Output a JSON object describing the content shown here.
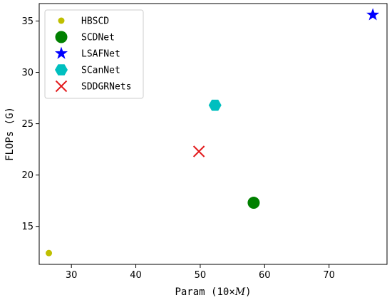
{
  "chart_data": {
    "type": "scatter",
    "xlabel": "Param (10×M)",
    "xlabel_parts": {
      "prefix": "Param (10",
      "times": "×",
      "unit": "M",
      "suffix": ")"
    },
    "ylabel": "FLOPs (G)",
    "xlim": [
      25,
      79
    ],
    "ylim": [
      11.3,
      36.7
    ],
    "xticks": [
      30,
      40,
      50,
      60,
      70
    ],
    "yticks": [
      15,
      20,
      25,
      30,
      35
    ],
    "grid": false,
    "legend_position": "top-left",
    "series": [
      {
        "name": "HBSCD",
        "marker": "circle-small",
        "color": "#bfbf00",
        "x": [
          26.5
        ],
        "y": [
          12.4
        ]
      },
      {
        "name": "SCDNet",
        "marker": "circle",
        "color": "#008000",
        "x": [
          58.3
        ],
        "y": [
          17.3
        ]
      },
      {
        "name": "LSAFNet",
        "marker": "star",
        "color": "#0000ff",
        "x": [
          76.8
        ],
        "y": [
          35.6
        ]
      },
      {
        "name": "SCanNet",
        "marker": "hexagon",
        "color": "#00bfbf",
        "x": [
          52.3
        ],
        "y": [
          26.8
        ]
      },
      {
        "name": "SDDGRNets",
        "marker": "x",
        "color": "#e31a1c",
        "x": [
          49.8
        ],
        "y": [
          22.3
        ]
      }
    ]
  }
}
